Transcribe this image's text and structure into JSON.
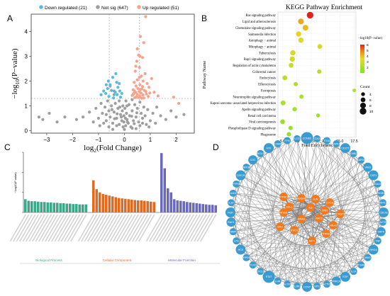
{
  "figure": {
    "panel_letters": {
      "a": "A",
      "b": "B",
      "c": "C",
      "d": "D"
    }
  },
  "chart_data": [
    {
      "panel": "A",
      "type": "scatter",
      "title": "",
      "xlabel": "log2(Fold Change)",
      "ylabel": "−log10(P−value)",
      "xlabel_parts": {
        "pre": "log",
        "sub": "2",
        "post": "(Fold Change)"
      },
      "ylabel_parts": {
        "pre": "−log",
        "sub": "10",
        "post": "(P−value)"
      },
      "xlim": [
        -3.6,
        2.7
      ],
      "ylim": [
        -0.1,
        4.7
      ],
      "xticks": [
        -3,
        -2,
        -1,
        0,
        1,
        2
      ],
      "yticks": [
        0,
        1,
        2,
        3,
        4
      ],
      "thresholds": {
        "x": [
          -0.585,
          0.585
        ],
        "y": 1.3
      },
      "legend_position": "top",
      "colors": {
        "down": "#5bb8de",
        "notsig": "#9e9e9e",
        "up": "#f4a48e"
      },
      "legend": [
        {
          "key": "down",
          "label": "Down regulated (21)"
        },
        {
          "key": "notsig",
          "label": "Not sig (647)"
        },
        {
          "key": "up",
          "label": "Up regulated (51)"
        }
      ],
      "points": {
        "down": [
          [
            -0.45,
            2.15
          ],
          [
            -0.62,
            2.0
          ],
          [
            -0.55,
            1.85
          ],
          [
            -0.3,
            1.95
          ],
          [
            -0.72,
            1.5
          ],
          [
            -0.4,
            1.45
          ],
          [
            -0.18,
            1.6
          ],
          [
            -0.5,
            1.62
          ],
          [
            -0.25,
            1.75
          ],
          [
            -0.65,
            1.7
          ],
          [
            -0.35,
            1.55
          ],
          [
            -0.9,
            1.45
          ],
          [
            -0.1,
            1.5
          ],
          [
            -0.28,
            1.45
          ],
          [
            -0.6,
            1.38
          ],
          [
            -0.2,
            1.9
          ],
          [
            -0.8,
            1.6
          ],
          [
            -0.42,
            1.32
          ],
          [
            -0.15,
            1.35
          ],
          [
            -0.7,
            1.85
          ],
          [
            -0.33,
            2.3
          ]
        ],
        "up": [
          [
            0.82,
            4.6
          ],
          [
            0.62,
            3.8
          ],
          [
            0.75,
            3.55
          ],
          [
            0.55,
            3.05
          ],
          [
            0.7,
            2.95
          ],
          [
            0.48,
            2.8
          ],
          [
            0.58,
            2.55
          ],
          [
            0.42,
            2.4
          ],
          [
            0.8,
            2.3
          ],
          [
            0.65,
            2.2
          ],
          [
            1.05,
            2.1
          ],
          [
            0.5,
            2.05
          ],
          [
            0.72,
            2.0
          ],
          [
            0.38,
            1.95
          ],
          [
            0.88,
            1.9
          ],
          [
            0.6,
            1.85
          ],
          [
            0.45,
            1.8
          ],
          [
            0.95,
            1.75
          ],
          [
            0.52,
            1.7
          ],
          [
            0.68,
            1.68
          ],
          [
            0.34,
            1.65
          ],
          [
            0.78,
            1.62
          ],
          [
            0.57,
            1.58
          ],
          [
            0.43,
            1.55
          ],
          [
            1.15,
            1.55
          ],
          [
            0.64,
            1.52
          ],
          [
            0.36,
            1.5
          ],
          [
            0.85,
            1.48
          ],
          [
            0.5,
            1.46
          ],
          [
            0.72,
            1.44
          ],
          [
            0.3,
            1.42
          ],
          [
            0.6,
            1.4
          ],
          [
            0.92,
            1.38
          ],
          [
            0.46,
            1.36
          ],
          [
            0.55,
            1.34
          ],
          [
            0.4,
            1.33
          ],
          [
            0.75,
            1.32
          ],
          [
            0.66,
            1.31
          ],
          [
            0.33,
            1.45
          ],
          [
            0.98,
            1.52
          ],
          [
            1.3,
            1.4
          ],
          [
            1.9,
            1.35
          ],
          [
            2.1,
            1.1
          ],
          [
            0.5,
            3.3
          ],
          [
            0.6,
            3.0
          ],
          [
            0.44,
            2.6
          ],
          [
            0.58,
            2.15
          ],
          [
            0.7,
            1.78
          ],
          [
            0.39,
            1.6
          ],
          [
            0.62,
            1.66
          ],
          [
            0.83,
            1.58
          ]
        ],
        "notsig": [
          [
            -3.3,
            0.55
          ],
          [
            -3.15,
            0.45
          ],
          [
            -2.9,
            0.7
          ],
          [
            -2.6,
            0.35
          ],
          [
            -2.3,
            0.55
          ],
          [
            -1.85,
            0.45
          ],
          [
            -1.6,
            0.55
          ],
          [
            -1.35,
            0.75
          ],
          [
            -1.1,
            0.9
          ],
          [
            -1.0,
            0.5
          ],
          [
            -0.9,
            1.1
          ],
          [
            -0.85,
            0.7
          ],
          [
            -0.75,
            0.95
          ],
          [
            -0.7,
            0.4
          ],
          [
            -0.65,
            1.2
          ],
          [
            -0.6,
            0.8
          ],
          [
            -0.55,
            0.55
          ],
          [
            -0.5,
            1.0
          ],
          [
            -0.45,
            0.3
          ],
          [
            -0.4,
            0.75
          ],
          [
            -0.35,
            1.1
          ],
          [
            -0.3,
            0.5
          ],
          [
            -0.25,
            0.9
          ],
          [
            -0.2,
            0.25
          ],
          [
            -0.15,
            0.65
          ],
          [
            -0.1,
            0.4
          ],
          [
            -0.05,
            0.15
          ],
          [
            0.0,
            0.05
          ],
          [
            0.05,
            0.2
          ],
          [
            0.1,
            0.45
          ],
          [
            0.15,
            0.3
          ],
          [
            0.2,
            0.6
          ],
          [
            0.25,
            0.15
          ],
          [
            0.3,
            0.8
          ],
          [
            0.35,
            0.4
          ],
          [
            0.4,
            1.05
          ],
          [
            0.45,
            0.55
          ],
          [
            0.5,
            0.9
          ],
          [
            0.55,
            0.35
          ],
          [
            0.6,
            1.15
          ],
          [
            0.65,
            0.7
          ],
          [
            0.7,
            0.5
          ],
          [
            0.75,
            0.95
          ],
          [
            0.8,
            0.6
          ],
          [
            0.9,
            0.85
          ],
          [
            1.0,
            0.4
          ],
          [
            1.1,
            0.7
          ],
          [
            1.25,
            0.95
          ],
          [
            1.4,
            0.6
          ],
          [
            1.6,
            0.45
          ],
          [
            1.8,
            0.8
          ],
          [
            2.0,
            0.55
          ],
          [
            2.3,
            0.65
          ],
          [
            -0.55,
            1.8
          ],
          [
            -0.4,
            1.6
          ],
          [
            0.3,
            1.25
          ],
          [
            -0.2,
            1.2
          ],
          [
            0.1,
            1.0
          ],
          [
            -0.08,
            0.8
          ],
          [
            0.08,
            0.7
          ],
          [
            -0.12,
            0.55
          ],
          [
            0.12,
            0.35
          ],
          [
            -0.02,
            0.6
          ],
          [
            0.02,
            0.9
          ],
          [
            -0.3,
            0.2
          ],
          [
            0.3,
            0.1
          ],
          [
            -0.6,
            0.15
          ],
          [
            0.6,
            0.2
          ],
          [
            -0.8,
            0.3
          ],
          [
            0.85,
            0.25
          ],
          [
            -1.2,
            0.35
          ],
          [
            1.2,
            0.3
          ],
          [
            -0.95,
            0.2
          ],
          [
            0.95,
            0.15
          ],
          [
            -0.45,
            0.05
          ],
          [
            0.45,
            0.08
          ],
          [
            -0.18,
            0.95
          ],
          [
            0.18,
            1.05
          ],
          [
            -0.28,
            0.68
          ],
          [
            0.28,
            0.58
          ],
          [
            -0.38,
            0.48
          ],
          [
            0.38,
            0.28
          ],
          [
            -0.48,
            0.85
          ],
          [
            0.48,
            0.72
          ],
          [
            -0.7,
            0.65
          ],
          [
            0.7,
            0.3
          ],
          [
            -0.02,
            0.35
          ],
          [
            0.04,
            0.5
          ],
          [
            -0.06,
            1.0
          ],
          [
            0.06,
            1.2
          ]
        ]
      }
    },
    {
      "panel": "B",
      "type": "scatter",
      "title": "KEGG Pathway Enrichment",
      "xlabel": "Fold Enrichment",
      "ylabel": "Pathway Name",
      "xlim": [
        4.2,
        17.8
      ],
      "xticks": [
        5.0,
        7.5,
        10.0,
        12.5,
        15.0,
        17.5
      ],
      "xtick_labels": [
        "5.0",
        "7.5",
        "10.0",
        "12.5",
        "15.0",
        "17.5"
      ],
      "color_scale": {
        "label": "−log10(P−value)",
        "min": 1,
        "max": 6,
        "ticks": [
          2,
          3,
          4,
          5,
          6
        ]
      },
      "size_legend": {
        "label": "Count",
        "values": [
          4,
          6,
          8,
          10
        ]
      },
      "legend_position": "right",
      "categories": [
        "Ras signaling pathway",
        "Lipid and atherosclerosis",
        "Chemokine signaling pathway",
        "Salmonella infection",
        "Autophagy − animal",
        "Mitophagy − animal",
        "Tuberculosis",
        "Rap1 signaling pathway",
        "Regulation of actin cytoskeleton",
        "Colorectal cancer",
        "Endocytosis",
        "Efferocytosis",
        "Ferroptosis",
        "Neurotrophin signaling pathway",
        "Kaposi sarcoma−associated herpesvirus infection",
        "Apelin signaling pathway",
        "Renal cell carcinoma",
        "Viral carcinogenesis",
        "Phospholipase D signaling pathway",
        "Phagosome"
      ],
      "points": [
        {
          "x": 9.8,
          "logp": 6.0,
          "count": 10
        },
        {
          "x": 8.2,
          "logp": 4.3,
          "count": 8
        },
        {
          "x": 9.0,
          "logp": 4.0,
          "count": 8
        },
        {
          "x": 7.8,
          "logp": 3.6,
          "count": 7
        },
        {
          "x": 8.2,
          "logp": 3.2,
          "count": 7
        },
        {
          "x": 11.5,
          "logp": 3.0,
          "count": 6
        },
        {
          "x": 6.8,
          "logp": 3.0,
          "count": 7
        },
        {
          "x": 6.7,
          "logp": 2.9,
          "count": 7
        },
        {
          "x": 6.5,
          "logp": 2.7,
          "count": 6
        },
        {
          "x": 11.4,
          "logp": 2.5,
          "count": 5
        },
        {
          "x": 5.4,
          "logp": 2.4,
          "count": 6
        },
        {
          "x": 7.3,
          "logp": 2.3,
          "count": 5
        },
        {
          "x": 17.5,
          "logp": 2.0,
          "count": 3
        },
        {
          "x": 8.3,
          "logp": 2.2,
          "count": 5
        },
        {
          "x": 5.1,
          "logp": 2.1,
          "count": 6
        },
        {
          "x": 7.1,
          "logp": 1.9,
          "count": 5
        },
        {
          "x": 11.2,
          "logp": 1.8,
          "count": 4
        },
        {
          "x": 5.0,
          "logp": 1.7,
          "count": 6
        },
        {
          "x": 6.4,
          "logp": 1.6,
          "count": 5
        },
        {
          "x": 6.1,
          "logp": 1.5,
          "count": 5
        }
      ]
    },
    {
      "panel": "C",
      "type": "bar",
      "title": "",
      "ylabel": "−Log10(P value)",
      "ylim": [
        0,
        15
      ],
      "groups": [
        {
          "name": "Biological Process",
          "color": "#3aa889",
          "values": [
            3.3,
            2.9,
            2.8,
            2.8,
            2.7,
            2.6,
            2.6,
            2.5,
            2.5,
            2.4,
            2.4,
            2.3,
            2.3,
            2.2,
            2.2,
            2.1,
            2.1,
            2.0,
            2.0,
            2.0
          ]
        },
        {
          "name": "Cellular Component",
          "color": "#e06a20",
          "values": [
            8.0,
            5.8,
            5.0,
            4.6,
            4.4,
            4.2,
            4.0,
            3.8,
            3.6,
            3.5,
            3.4,
            3.3,
            3.2,
            3.1,
            3.0,
            3.0,
            2.9,
            2.8,
            2.7,
            2.6
          ]
        },
        {
          "name": "Molecular Function",
          "color": "#6a6ab8",
          "values": [
            14.8,
            11.0,
            6.0,
            5.0,
            3.3,
            3.0,
            2.9,
            2.8,
            2.6,
            2.5,
            2.4,
            2.3,
            2.2,
            2.1,
            2.0,
            1.9,
            1.9,
            1.8
          ]
        }
      ]
    }
  ],
  "network": {
    "panel": "D",
    "outer_nodes": [
      "CCND2",
      "CD14",
      "ITGA",
      "MAPK11",
      "CD276",
      "GAB2",
      "GAPDH",
      "VAV3",
      "CSF3",
      "GALN",
      "PIK3R1",
      "MAPK14",
      "CDC42",
      "ACTB",
      "SAPK",
      "TNF",
      "RHOA",
      "WAS",
      "ITGAM",
      "IL1A",
      "EGF",
      "PRKCA",
      "ACTN1",
      "SPI1",
      "CCN7",
      "IL2RG",
      "ALOX5",
      "IL4R",
      "STAT",
      "CXCL8",
      "TLR2",
      "SERPINE1",
      "HCK",
      "LYN",
      "MMP",
      "RAC1",
      "FGR",
      "IL10",
      "JAK3",
      "PTPN6",
      "CSF1R",
      "NFKB",
      "CDC",
      "MCL1",
      "SYK",
      "CD86",
      "FYN",
      "PLCG2"
    ],
    "inner_nodes": [
      "PPP3CA",
      "VEGFA",
      "JUN",
      "CYCS",
      "CFL1",
      "IL6",
      "TP53",
      "NFKB1",
      "KRAS",
      "RAC2",
      "CASP3",
      "STAT3",
      "AKT1",
      "PTPN11",
      "SRC",
      "HRAS"
    ]
  }
}
